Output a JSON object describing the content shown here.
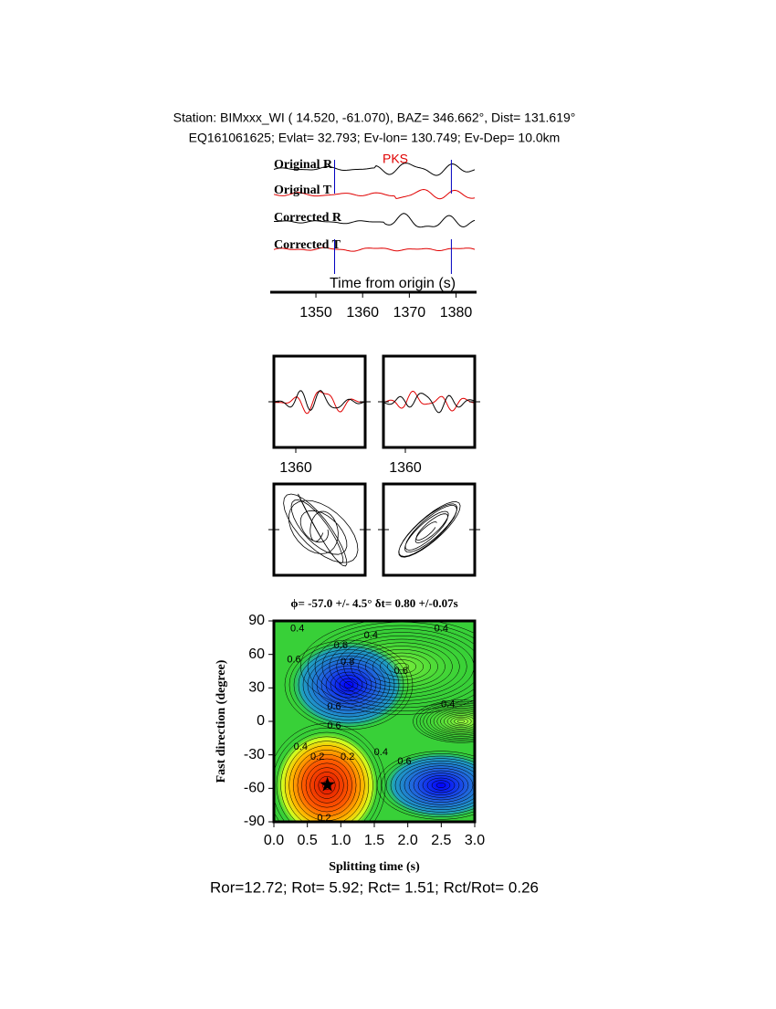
{
  "chart_data": [
    {
      "type": "traces",
      "header": [
        "Station: BIMxxx_WI (  14.520,  -61.070), BAZ=  346.662°, Dist=  131.619°",
        "EQ161061625; Evlat=  32.793; Ev-lon= 130.749; Ev-Dep= 10.0km"
      ],
      "trace_labels": [
        "Original R",
        "Original T",
        "Corrected R",
        "Corrected T"
      ],
      "phase": {
        "label": "PKS",
        "time": 1367
      },
      "window": [
        1354,
        1379
      ],
      "xlabel": "Time from origin (s)",
      "xlim": [
        1341,
        1384
      ],
      "xticks": [
        1350,
        1360,
        1370,
        1380
      ]
    },
    {
      "type": "waveform-panels",
      "xticks": [
        1360,
        1360
      ]
    },
    {
      "type": "contour",
      "title": "ϕ= -57.0 +/- 4.5° δt= 0.80 +/-0.07s",
      "xlabel": "Splitting time (s)",
      "ylabel": "Fast direction (degree)",
      "xlim": [
        0,
        3
      ],
      "ylim": [
        -90,
        90
      ],
      "xticks": [
        {
          "value": 0,
          "label": "0.0"
        },
        0.5,
        {
          "value": 1,
          "label": "1.0"
        },
        1.5,
        {
          "value": 2,
          "label": "2.0"
        },
        2.5,
        {
          "value": 3,
          "label": "3.0"
        }
      ],
      "yticks": [
        -90,
        -60,
        -30,
        0,
        30,
        60,
        90
      ],
      "best": {
        "x": 0.8,
        "y": -57
      },
      "contour_labels": [
        {
          "value": 0.4,
          "x": 0.35,
          "y": 83
        },
        {
          "value": 0.6,
          "x": 0.3,
          "y": 55
        },
        {
          "value": 0.6,
          "x": 1.0,
          "y": 68
        },
        {
          "value": 0.8,
          "x": 1.1,
          "y": 53
        },
        {
          "value": 0.4,
          "x": 1.45,
          "y": 77
        },
        {
          "value": 0.4,
          "x": 2.5,
          "y": 83
        },
        {
          "value": 0.6,
          "x": 1.9,
          "y": 45
        },
        {
          "value": 0.4,
          "x": 2.6,
          "y": 15
        },
        {
          "value": 0.6,
          "x": 0.9,
          "y": 13
        },
        {
          "value": 0.6,
          "x": 0.9,
          "y": -4
        },
        {
          "value": 0.4,
          "x": 0.4,
          "y": -23
        },
        {
          "value": 0.2,
          "x": 0.65,
          "y": -32
        },
        {
          "value": 0.2,
          "x": 1.1,
          "y": -32
        },
        {
          "value": 0.4,
          "x": 1.6,
          "y": -28
        },
        {
          "value": 0.6,
          "x": 1.95,
          "y": -36
        },
        {
          "value": 0.2,
          "x": 0.75,
          "y": -87
        }
      ],
      "footer": "Ror=12.72; Rot= 5.92; Rct= 1.51; Rct/Rot= 0.26"
    }
  ]
}
